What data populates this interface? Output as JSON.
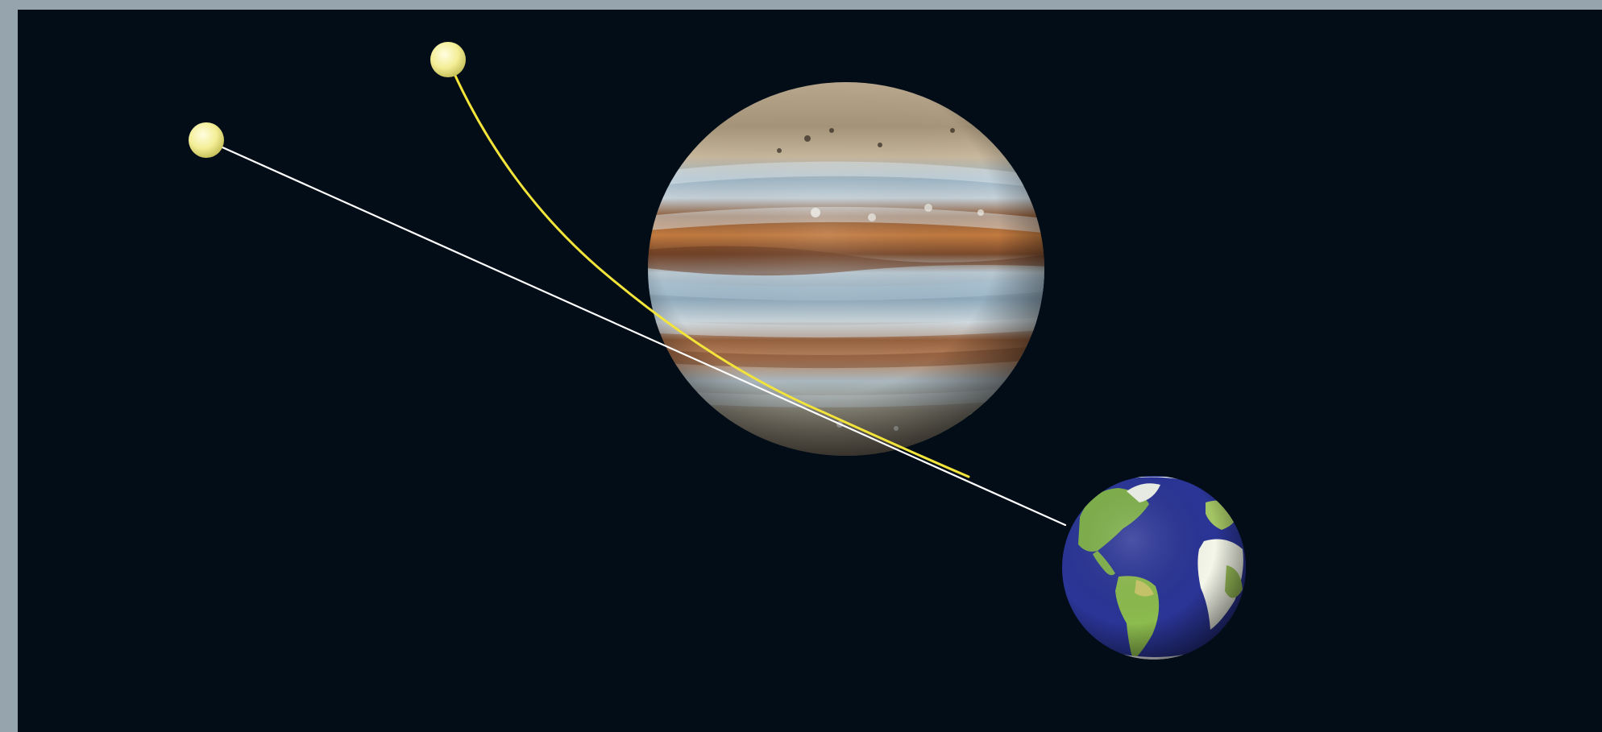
{
  "scene": {
    "description_free": true,
    "colors": {
      "border": "#96a4ae",
      "space": "#020d17",
      "straight_ray": "#ffffff",
      "bent_ray": "#f2e43a",
      "star": "#f6f2a0"
    },
    "objects": {
      "apparent_star": "star",
      "true_star": "star",
      "deflecting_planet": "jupiter",
      "observer_planet": "earth"
    },
    "rays": {
      "straight": "straight-light-ray",
      "bent": "bent-light-ray"
    }
  }
}
